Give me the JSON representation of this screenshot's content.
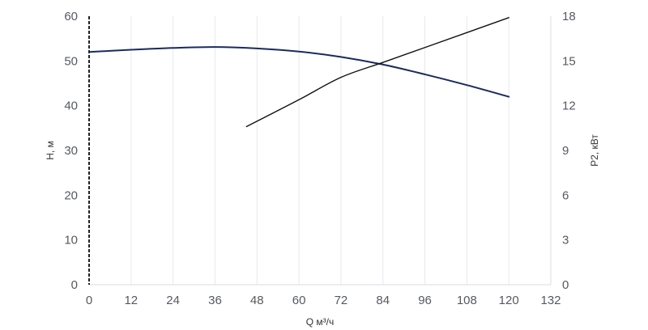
{
  "chart_data": {
    "type": "line",
    "xlabel": "Q м³/ч",
    "ylabel_left": "H, м",
    "ylabel_right": "P2, кВт",
    "xlim": [
      0,
      132
    ],
    "ylim_left": [
      0,
      60
    ],
    "ylim_right": [
      0,
      18
    ],
    "x_ticks": [
      "0",
      "12",
      "24",
      "36",
      "48",
      "60",
      "72",
      "84",
      "96",
      "108",
      "120",
      "132"
    ],
    "y_left_ticks": [
      "0",
      "10",
      "20",
      "30",
      "40",
      "50",
      "60"
    ],
    "y_right_ticks": [
      "0",
      "3",
      "6",
      "9",
      "12",
      "15",
      "18"
    ],
    "grid": "vertical",
    "series": [
      {
        "axis": "left",
        "color": "#1b2a5e",
        "points": [
          [
            0,
            52.0
          ],
          [
            12,
            52.5
          ],
          [
            24,
            52.9
          ],
          [
            36,
            53.1
          ],
          [
            48,
            52.8
          ],
          [
            60,
            52.1
          ],
          [
            72,
            50.9
          ],
          [
            84,
            49.2
          ],
          [
            96,
            47.0
          ],
          [
            108,
            44.6
          ],
          [
            120,
            42.0
          ]
        ]
      },
      {
        "axis": "right",
        "color": "#111111",
        "points": [
          [
            45,
            10.6
          ],
          [
            60,
            12.4
          ],
          [
            72,
            13.9
          ],
          [
            84,
            14.9
          ],
          [
            96,
            15.9
          ],
          [
            108,
            16.9
          ],
          [
            120,
            17.9
          ]
        ]
      }
    ]
  }
}
